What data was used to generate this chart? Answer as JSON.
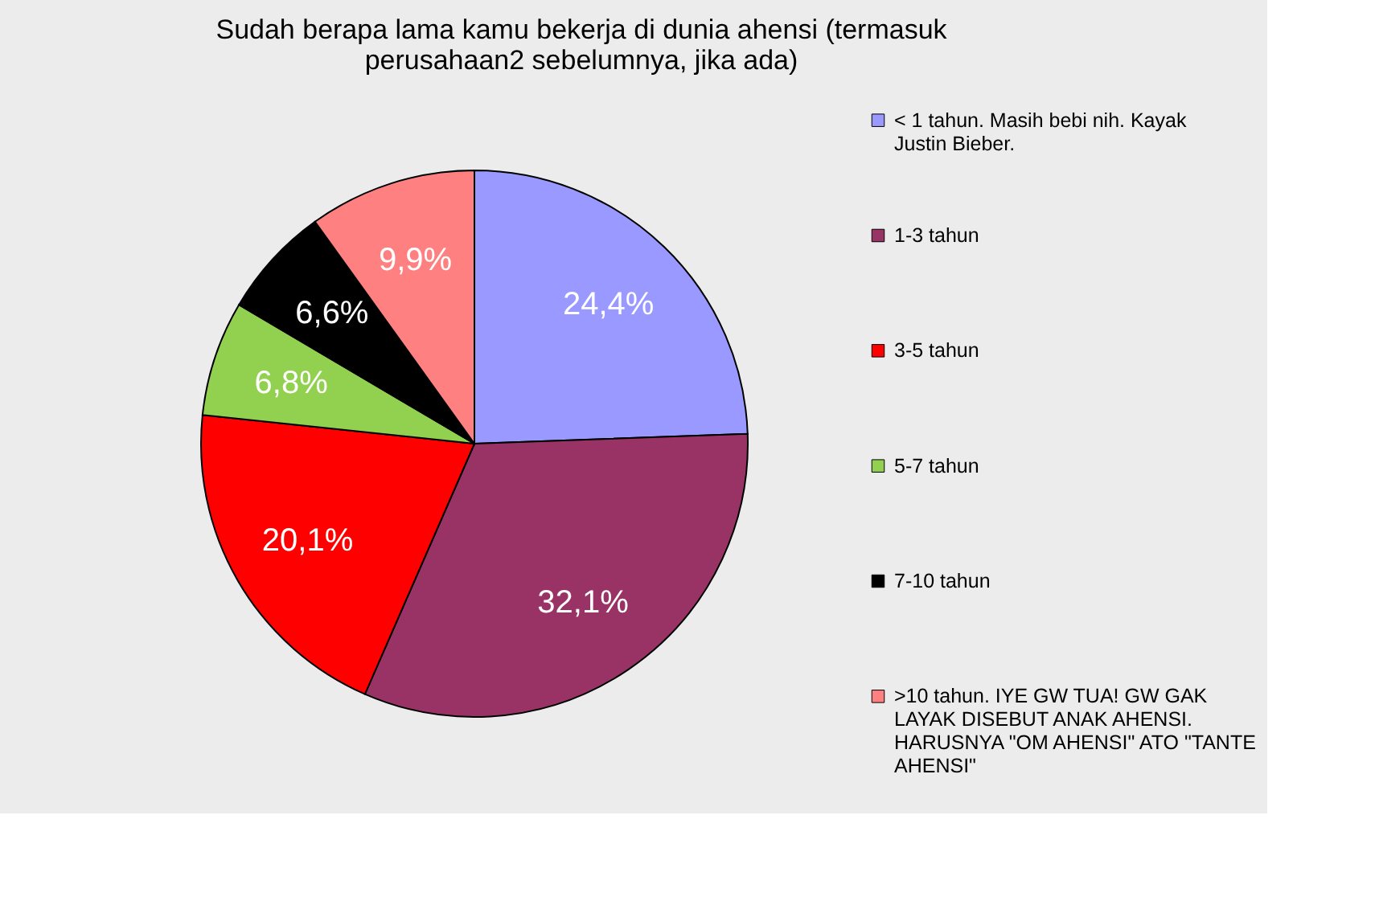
{
  "chart_data": {
    "type": "pie",
    "title": "Sudah berapa lama kamu bekerja di dunia ahensi (termasuk perusahaan2 sebelumnya, jika ada)",
    "categories": [
      "< 1 tahun. Masih bebi nih. Kayak Justin Bieber.",
      "1-3 tahun",
      "3-5 tahun",
      "5-7 tahun",
      "7-10 tahun",
      ">10 tahun. IYE GW TUA! GW GAK LAYAK DISEBUT ANAK AHENSI. HARUSNYA \"OM AHENSI\" ATO \"TANTE AHENSI\""
    ],
    "values": [
      24.4,
      32.1,
      20.1,
      6.8,
      6.6,
      9.9
    ],
    "value_labels": [
      "24,4%",
      "32,1%",
      "20,1%",
      "6,8%",
      "6,6%",
      "9,9%"
    ],
    "colors": [
      "#9999ff",
      "#993366",
      "#ff0000",
      "#92d050",
      "#000000",
      "#ff8080"
    ],
    "legend": "right"
  }
}
